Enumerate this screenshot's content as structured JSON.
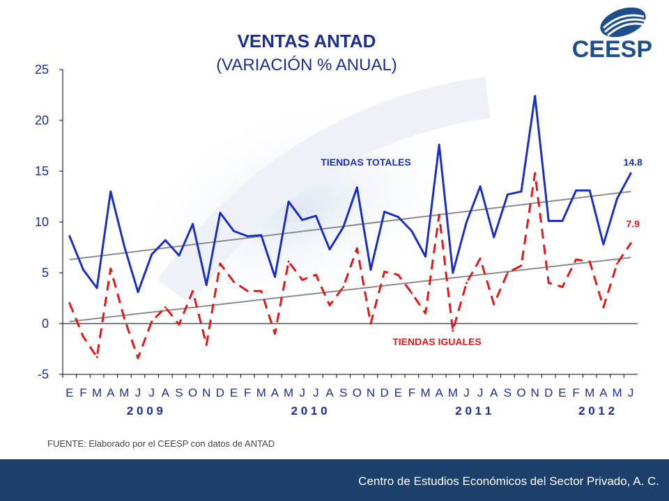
{
  "header": {
    "title": "VENTAS ANTAD",
    "subtitle": "(VARIACIÓN % ANUAL)",
    "logo_text": "CEESP"
  },
  "chart_data": {
    "type": "line",
    "ylim": [
      -5,
      25
    ],
    "yticks": [
      "25",
      "20",
      "15",
      "10",
      "5",
      "0",
      "-5"
    ],
    "categories": [
      "E",
      "F",
      "M",
      "A",
      "M",
      "J",
      "J",
      "A",
      "S",
      "O",
      "N",
      "D",
      "E",
      "F",
      "M",
      "A",
      "M",
      "J",
      "J",
      "A",
      "S",
      "O",
      "N",
      "D",
      "E",
      "F",
      "M",
      "A",
      "M",
      "J",
      "J",
      "A",
      "S",
      "O",
      "N",
      "D",
      "E",
      "F",
      "M",
      "A",
      "M",
      "J"
    ],
    "years": [
      "2 0 0 9",
      "2 0 1 0",
      "2 0 1 1",
      "2 0 1 2"
    ],
    "series": [
      {
        "name": "TIENDAS TOTALES",
        "color": "#1a2fc0",
        "style": "solid",
        "last_label": "14.8",
        "values": [
          8.6,
          5.3,
          3.5,
          13.0,
          7.6,
          3.1,
          6.8,
          8.2,
          6.7,
          9.8,
          3.8,
          10.9,
          9.1,
          8.6,
          8.7,
          4.6,
          12.0,
          10.2,
          10.6,
          7.3,
          9.5,
          13.4,
          5.3,
          11.0,
          10.5,
          9.1,
          6.6,
          17.6,
          5.0,
          10.0,
          13.5,
          8.5,
          12.7,
          13.0,
          22.4,
          10.1,
          10.1,
          13.1,
          13.1,
          7.8,
          12.3,
          14.8
        ]
      },
      {
        "name": "TIENDAS IGUALES",
        "color": "#e01818",
        "style": "dashed",
        "last_label": "7.9",
        "values": [
          2.0,
          -1.3,
          -3.3,
          5.4,
          0.5,
          -3.4,
          0.2,
          1.6,
          -0.1,
          3.2,
          -2.1,
          5.9,
          4.1,
          3.2,
          3.2,
          -1.0,
          6.1,
          4.3,
          4.8,
          1.8,
          3.6,
          7.4,
          0.0,
          5.1,
          4.8,
          3.0,
          1.0,
          10.7,
          -0.7,
          4.0,
          6.4,
          1.9,
          5.0,
          5.7,
          14.8,
          4.0,
          3.6,
          6.3,
          6.1,
          1.6,
          5.9,
          7.9
        ]
      }
    ],
    "trendlines": [
      {
        "start": 6.3,
        "end": 13.0
      },
      {
        "start": 0.2,
        "end": 6.5
      }
    ]
  },
  "footer": {
    "source": "FUENTE: Elaborado por el CEESP con datos de ANTAD",
    "org": "Centro de Estudios Económicos del Sector Privado, A. C."
  }
}
